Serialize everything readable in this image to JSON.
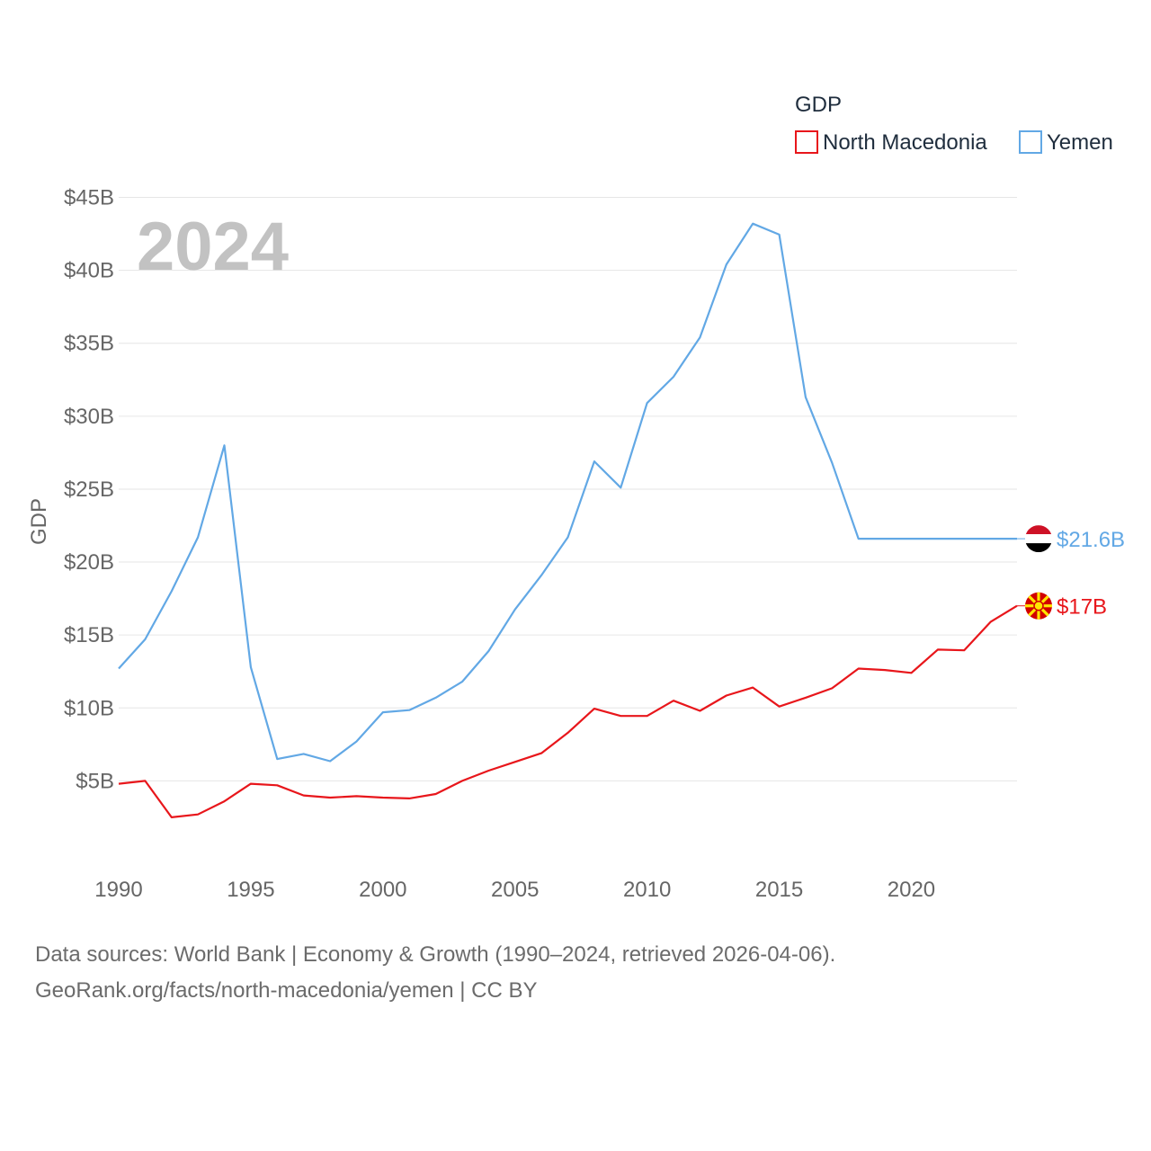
{
  "chart_data": {
    "type": "line",
    "title": "",
    "year_label": "2024",
    "ylabel": "GDP",
    "xlabel": "",
    "xlim": [
      1990,
      2024
    ],
    "ylim": [
      0,
      45
    ],
    "yticks": [
      5,
      10,
      15,
      20,
      25,
      30,
      35,
      40,
      45
    ],
    "ytick_labels": [
      "$5B",
      "$10B",
      "$15B",
      "$20B",
      "$25B",
      "$30B",
      "$35B",
      "$40B",
      "$45B"
    ],
    "xticks": [
      1990,
      1995,
      2000,
      2005,
      2010,
      2015,
      2020
    ],
    "xtick_labels": [
      "1990",
      "1995",
      "2000",
      "2005",
      "2010",
      "2015",
      "2020"
    ],
    "legend": {
      "title": "GDP",
      "position": "top-right"
    },
    "x": [
      1990,
      1991,
      1992,
      1993,
      1994,
      1995,
      1996,
      1997,
      1998,
      1999,
      2000,
      2001,
      2002,
      2003,
      2004,
      2005,
      2006,
      2007,
      2008,
      2009,
      2010,
      2011,
      2012,
      2013,
      2014,
      2015,
      2016,
      2017,
      2018,
      2019,
      2020,
      2021,
      2022,
      2023,
      2024
    ],
    "series": [
      {
        "name": "North Macedonia",
        "color": "#e8161b",
        "end_label": "$17B",
        "flag": "north-macedonia",
        "values": [
          4.8,
          5.0,
          2.5,
          2.7,
          3.6,
          4.8,
          4.7,
          4.0,
          3.85,
          3.95,
          3.85,
          3.8,
          4.1,
          5.0,
          5.7,
          6.3,
          6.9,
          8.3,
          9.95,
          9.45,
          9.45,
          10.5,
          9.8,
          10.85,
          11.4,
          10.1,
          10.7,
          11.35,
          12.7,
          12.6,
          12.4,
          14.0,
          13.95,
          15.9,
          17.0
        ]
      },
      {
        "name": "Yemen",
        "color": "#62a8e5",
        "end_label": "$21.6B",
        "flag": "yemen",
        "values": [
          12.7,
          14.7,
          18.0,
          21.7,
          28.0,
          12.8,
          6.5,
          6.85,
          6.35,
          7.7,
          9.7,
          9.85,
          10.7,
          11.8,
          13.9,
          16.75,
          19.1,
          21.7,
          26.9,
          25.1,
          30.9,
          32.7,
          35.4,
          40.4,
          43.2,
          42.45,
          31.3,
          26.8,
          21.6,
          21.6,
          21.6,
          21.6,
          21.6,
          21.6,
          21.6
        ]
      }
    ]
  },
  "source": {
    "line1": "Data sources: World Bank | Economy & Growth (1990–2024, retrieved 2026-04-06).",
    "line2": "GeoRank.org/facts/north-macedonia/yemen | CC BY"
  }
}
